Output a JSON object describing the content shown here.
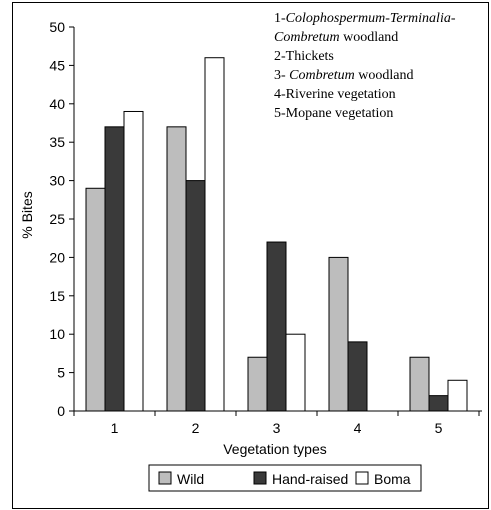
{
  "chart_data": {
    "type": "bar",
    "title": "",
    "xlabel": "Vegetation types",
    "ylabel": "% Bites",
    "ylim": [
      0,
      50
    ],
    "yticks": [
      0,
      5,
      10,
      15,
      20,
      25,
      30,
      35,
      40,
      45,
      50
    ],
    "categories": [
      "1",
      "2",
      "3",
      "4",
      "5"
    ],
    "series": [
      {
        "name": "Wild",
        "color": "#bdbdbd",
        "values": [
          29,
          37,
          7,
          20,
          7
        ]
      },
      {
        "name": "Hand-raised",
        "color": "#3a3a3a",
        "values": [
          37,
          30,
          22,
          9,
          2
        ]
      },
      {
        "name": "Boma",
        "color": "#ffffff",
        "values": [
          39,
          46,
          10,
          0,
          4
        ]
      }
    ],
    "legend_position": "bottom",
    "grid": false,
    "annotation_lines": [
      {
        "parts": [
          {
            "t": "1-",
            "i": false
          },
          {
            "t": "Colophospermum-Terminalia-",
            "i": true
          }
        ]
      },
      {
        "parts": [
          {
            "t": "Combretum",
            "i": true
          },
          {
            "t": " woodland",
            "i": false
          }
        ]
      },
      {
        "parts": [
          {
            "t": "2-Thickets",
            "i": false
          }
        ]
      },
      {
        "parts": [
          {
            "t": "3- ",
            "i": false
          },
          {
            "t": "Combretum",
            "i": true
          },
          {
            "t": " woodland",
            "i": false
          }
        ]
      },
      {
        "parts": [
          {
            "t": "4-Riverine vegetation",
            "i": false
          }
        ]
      },
      {
        "parts": [
          {
            "t": "5-Mopane vegetation",
            "i": false
          }
        ]
      }
    ]
  }
}
